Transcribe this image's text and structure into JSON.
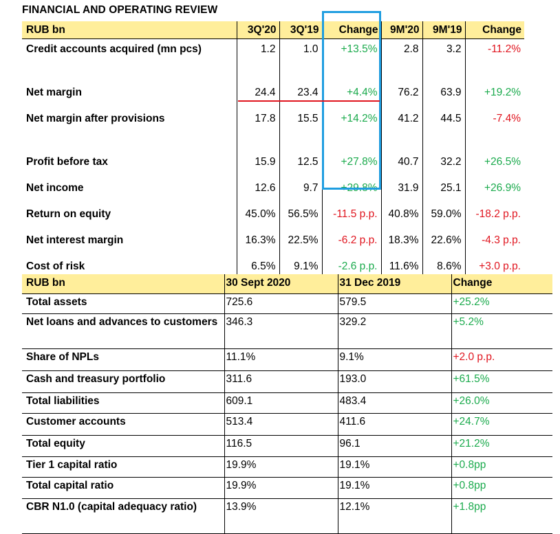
{
  "title": "FINANCIAL AND OPERATING REVIEW",
  "operating": {
    "headers": [
      "RUB bn",
      "3Q'20",
      "3Q'19",
      "Change",
      "9M'20",
      "9M'19",
      "Change"
    ],
    "rows": [
      {
        "label": "Credit accounts acquired (mn pcs)",
        "q20": "1.2",
        "q19": "1.0",
        "qchg": "+13.5%",
        "qdir": "pos",
        "m20": "2.8",
        "m19": "3.2",
        "mchg": "-11.2%",
        "mdir": "neg",
        "gap": true
      },
      {
        "label": "Net margin",
        "q20": "24.4",
        "q19": "23.4",
        "qchg": "+4.4%",
        "qdir": "pos",
        "m20": "76.2",
        "m19": "63.9",
        "mchg": "+19.2%",
        "mdir": "pos",
        "gap": false
      },
      {
        "label": "Net margin after provisions",
        "q20": "17.8",
        "q19": "15.5",
        "qchg": "+14.2%",
        "qdir": "pos",
        "m20": "41.2",
        "m19": "44.5",
        "mchg": "-7.4%",
        "mdir": "neg",
        "gap": true
      },
      {
        "label": "Profit before tax",
        "q20": "15.9",
        "q19": "12.5",
        "qchg": "+27.8%",
        "qdir": "pos",
        "m20": "40.7",
        "m19": "32.2",
        "mchg": "+26.5%",
        "mdir": "pos",
        "gap": false
      },
      {
        "label": "Net income",
        "q20": "12.6",
        "q19": "9.7",
        "qchg": "+29.8%",
        "qdir": "pos",
        "m20": "31.9",
        "m19": "25.1",
        "mchg": "+26.9%",
        "mdir": "pos",
        "gap": false
      },
      {
        "label": "Return on equity",
        "q20": "45.0%",
        "q19": "56.5%",
        "qchg": "-11.5 p.p.",
        "qdir": "neg",
        "m20": "40.8%",
        "m19": "59.0%",
        "mchg": "-18.2 p.p.",
        "mdir": "neg",
        "gap": false
      },
      {
        "label": "Net interest margin",
        "q20": "16.3%",
        "q19": "22.5%",
        "qchg": "-6.2 p.p.",
        "qdir": "neg",
        "m20": "18.3%",
        "m19": "22.6%",
        "mchg": "-4.3 p.p.",
        "mdir": "neg",
        "gap": false
      },
      {
        "label": "Cost of risk",
        "q20": "6.5%",
        "q19": "9.1%",
        "qchg": "-2.6 p.p.",
        "qdir": "pos",
        "m20": "11.6%",
        "m19": "8.6%",
        "mchg": "+3.0 p.p.",
        "mdir": "neg",
        "gap": false
      }
    ]
  },
  "balance": {
    "headers": [
      "RUB bn",
      "30 Sept 2020",
      "31 Dec 2019",
      "Change"
    ],
    "rows": [
      {
        "label": "Total assets",
        "a": "725.6",
        "b": "579.5",
        "chg": "+25.2%",
        "dir": "pos"
      },
      {
        "label": "Net loans and advances to customers",
        "a": "346.3",
        "b": "329.2",
        "chg": "+5.2%",
        "dir": "pos"
      },
      {
        "label": "Share of NPLs",
        "a": "11.1%",
        "b": "9.1%",
        "chg": "+2.0 p.p.",
        "dir": "neg"
      },
      {
        "label": "Cash and treasury portfolio",
        "a": "311.6",
        "b": "193.0",
        "chg": "+61.5%",
        "dir": "pos"
      },
      {
        "label": "Total liabilities",
        "a": "609.1",
        "b": "483.4",
        "chg": "+26.0%",
        "dir": "pos"
      },
      {
        "label": "Customer accounts",
        "a": "513.4",
        "b": "411.6",
        "chg": "+24.7%",
        "dir": "pos"
      },
      {
        "label": "Total equity",
        "a": "116.5",
        "b": "96.1",
        "chg": "+21.2%",
        "dir": "pos"
      },
      {
        "label": "Tier 1 capital ratio",
        "a": "19.9%",
        "b": "19.1%",
        "chg": "+0.8pp",
        "dir": "pos"
      },
      {
        "label": "Total capital ratio",
        "a": "19.9%",
        "b": "19.1%",
        "chg": "+0.8pp",
        "dir": "pos"
      },
      {
        "label": "CBR N1.0 (capital adequacy ratio)",
        "a": "13.9%",
        "b": "12.1%",
        "chg": "+1.8pp",
        "dir": "pos"
      }
    ]
  }
}
